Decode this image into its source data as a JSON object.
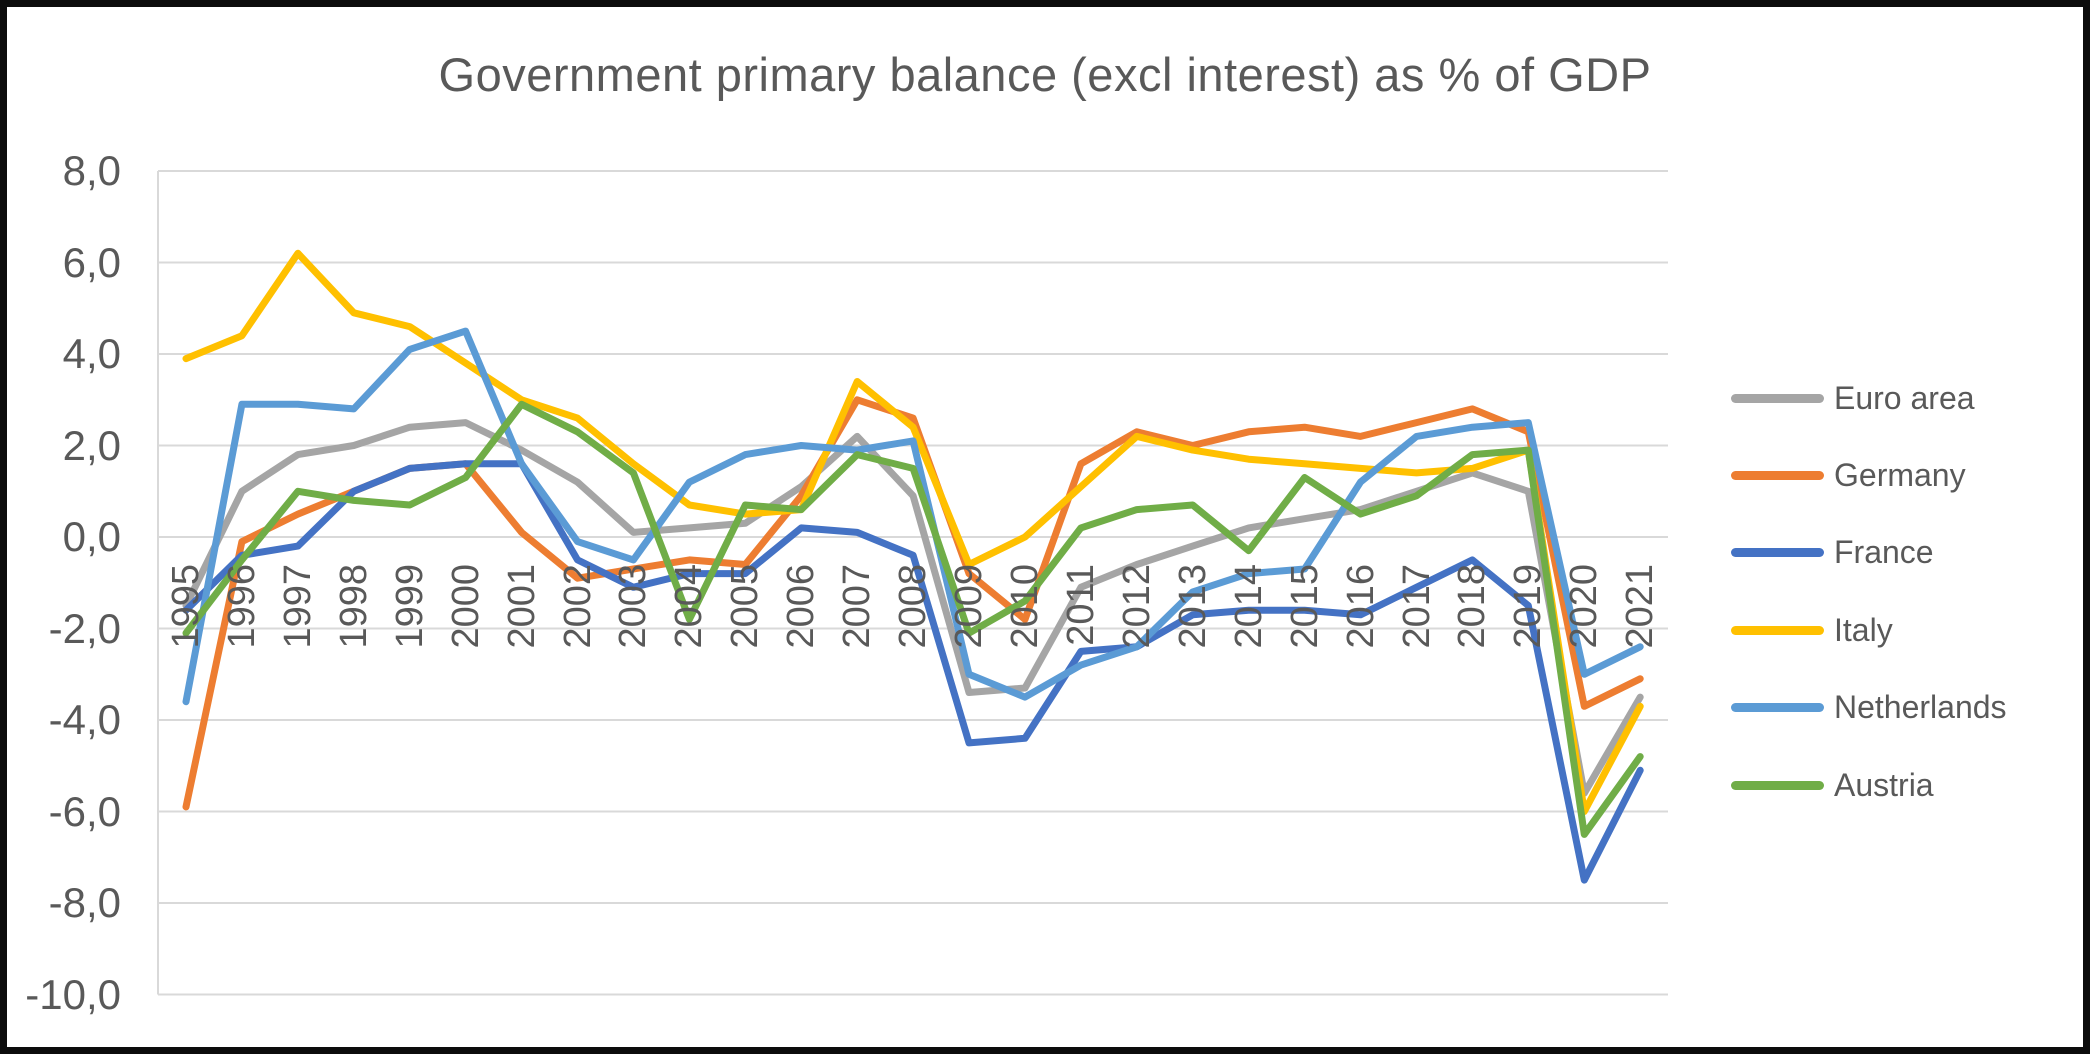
{
  "chart_data": {
    "type": "line",
    "title": "Government primary balance (excl interest) as % of GDP",
    "xlabel": "",
    "ylabel": "",
    "ylim": [
      -10,
      8
    ],
    "grid": true,
    "gridline_step": 2,
    "legend_position": "right",
    "decimal_separator": "comma",
    "y_tick_labels": [
      "8,0",
      "6,0",
      "4,0",
      "2,0",
      "0,0",
      "-2,0",
      "-4,0",
      "-6,0",
      "-8,0",
      "-10,0"
    ],
    "y_tick_values": [
      8,
      6,
      4,
      2,
      0,
      -2,
      -4,
      -6,
      -8,
      -10
    ],
    "categories": [
      "1995",
      "1996",
      "1997",
      "1998",
      "1999",
      "2000",
      "2001",
      "2002",
      "2003",
      "2004",
      "2005",
      "2006",
      "2007",
      "2008",
      "2009",
      "2010",
      "2011",
      "2012",
      "2013",
      "2014",
      "2015",
      "2016",
      "2017",
      "2018",
      "2019",
      "2020",
      "2021"
    ],
    "series": [
      {
        "name": "Euro area",
        "color": "#A5A5A5",
        "values": [
          -1.5,
          1.0,
          1.8,
          2.0,
          2.4,
          2.5,
          1.9,
          1.2,
          0.1,
          0.2,
          0.3,
          1.1,
          2.2,
          0.9,
          -3.4,
          -3.3,
          -1.1,
          -0.6,
          -0.2,
          0.2,
          0.4,
          0.6,
          1.0,
          1.4,
          1.0,
          -5.6,
          -3.5
        ]
      },
      {
        "name": "Germany",
        "color": "#ED7D31",
        "values": [
          -5.9,
          -0.1,
          0.5,
          1.0,
          1.5,
          1.6,
          0.1,
          -0.9,
          -0.7,
          -0.5,
          -0.6,
          0.9,
          3.0,
          2.6,
          -0.8,
          -1.8,
          1.6,
          2.3,
          2.0,
          2.3,
          2.4,
          2.2,
          2.5,
          2.8,
          2.3,
          -3.7,
          -3.1
        ]
      },
      {
        "name": "France",
        "color": "#4472C4",
        "values": [
          -1.6,
          -0.4,
          -0.2,
          1.0,
          1.5,
          1.6,
          1.6,
          -0.5,
          -1.1,
          -0.8,
          -0.8,
          0.2,
          0.1,
          -0.4,
          -4.5,
          -4.4,
          -2.5,
          -2.4,
          -1.7,
          -1.6,
          -1.6,
          -1.7,
          -1.1,
          -0.5,
          -1.5,
          -7.5,
          -5.1
        ]
      },
      {
        "name": "Italy",
        "color": "#FFC000",
        "values": [
          3.9,
          4.4,
          6.2,
          4.9,
          4.6,
          3.8,
          3.0,
          2.6,
          1.6,
          0.7,
          0.5,
          0.6,
          3.4,
          2.4,
          -0.6,
          0.0,
          1.1,
          2.2,
          1.9,
          1.7,
          1.6,
          1.5,
          1.4,
          1.5,
          1.9,
          -6.0,
          -3.7
        ]
      },
      {
        "name": "Netherlands",
        "color": "#5B9BD5",
        "values": [
          -3.6,
          2.9,
          2.9,
          2.8,
          4.1,
          4.5,
          1.6,
          -0.1,
          -0.5,
          1.2,
          1.8,
          2.0,
          1.9,
          2.1,
          -3.0,
          -3.5,
          -2.8,
          -2.4,
          -1.2,
          -0.8,
          -0.7,
          1.2,
          2.2,
          2.4,
          2.5,
          -3.0,
          -2.4
        ]
      },
      {
        "name": "Austria",
        "color": "#70AD47",
        "values": [
          -2.1,
          -0.5,
          1.0,
          0.8,
          0.7,
          1.3,
          2.9,
          2.3,
          1.4,
          -1.8,
          0.7,
          0.6,
          1.8,
          1.5,
          -2.1,
          -1.4,
          0.2,
          0.6,
          0.7,
          -0.3,
          1.3,
          0.5,
          0.9,
          1.8,
          1.9,
          -6.5,
          -4.8
        ]
      }
    ],
    "style": {
      "grid_color": "#D9D9D9",
      "text_color": "#595959",
      "background": "#FFFFFF",
      "frame_border_color": "#0C0C0C",
      "line_width": 7
    }
  }
}
